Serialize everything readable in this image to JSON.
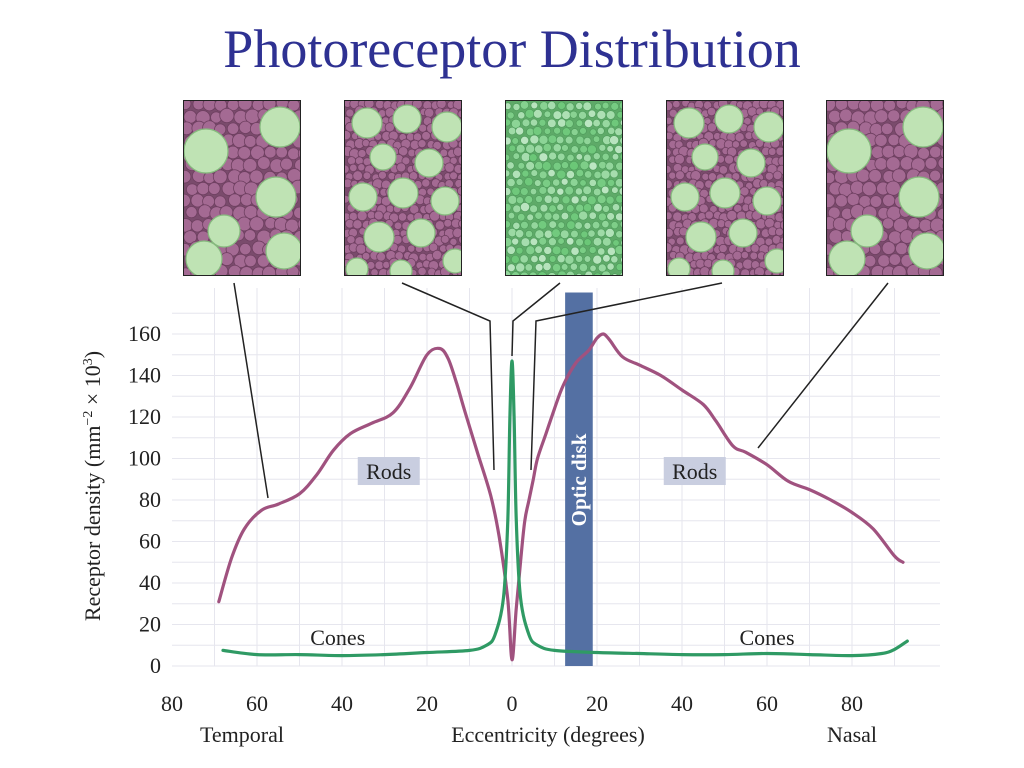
{
  "title": "Photoreceptor Distribution",
  "colors": {
    "title": "#2e3192",
    "rods": "#a0527f",
    "cones": "#2f9a64",
    "optic_disk": "#5470a3",
    "label_bg": "#c9cee0",
    "grid": "#e6e6ee",
    "rod_cell": "#a46a93",
    "cone_cell": "#bfe3b4",
    "fovea_cell": "#7fc98a"
  },
  "micrographs": [
    {
      "name": "temporal-periphery",
      "type": "mixed-sparse-cones"
    },
    {
      "name": "temporal-near-fovea",
      "type": "mixed-dense-cones"
    },
    {
      "name": "fovea",
      "type": "cones-only"
    },
    {
      "name": "nasal-near-fovea",
      "type": "mixed-dense-cones"
    },
    {
      "name": "nasal-periphery",
      "type": "mixed-sparse-cones"
    }
  ],
  "chart_data": {
    "type": "line",
    "ylabel_main": "Receptor density (mm",
    "ylabel_exp": "−2",
    "ylabel_mid": " × 10",
    "ylabel_exp2": "3",
    "ylabel_end": ")",
    "xlabel": "Eccentricity (degrees)",
    "x_left_label": "Temporal",
    "x_right_label": "Nasal",
    "xlim": [
      -80,
      95
    ],
    "ylim": [
      0,
      170
    ],
    "xticks": [
      -80,
      -60,
      -40,
      -20,
      0,
      20,
      40,
      60,
      80
    ],
    "xtick_labels": [
      "80",
      "60",
      "40",
      "20",
      "0",
      "20",
      "40",
      "60",
      "80"
    ],
    "yticks": [
      0,
      20,
      40,
      60,
      80,
      100,
      120,
      140,
      160
    ],
    "ytick_labels": [
      "0",
      "20",
      "40",
      "60",
      "80",
      "100",
      "120",
      "140",
      "160"
    ],
    "optic_disk": {
      "label": "Optic disk",
      "x_range": [
        12.5,
        19
      ],
      "y_top": 180
    },
    "series": [
      {
        "name": "Rods",
        "x": [
          -69,
          -66,
          -63,
          -59,
          -55,
          -50,
          -46,
          -42,
          -38,
          -33,
          -28,
          -24,
          -20,
          -17,
          -15,
          -13,
          -11,
          -8,
          -5,
          -3,
          -1,
          0,
          1,
          2,
          3,
          4,
          5,
          6,
          8,
          10,
          12,
          15,
          18,
          20,
          21.5,
          23,
          26,
          30,
          35,
          40,
          45,
          48,
          52,
          55,
          60,
          65,
          70,
          75,
          80,
          85,
          90,
          92
        ],
        "values": [
          31,
          52,
          66,
          75,
          78,
          83,
          92,
          104,
          112,
          117,
          122,
          134,
          150,
          153,
          148,
          136,
          122,
          102,
          82,
          62,
          32,
          3,
          28,
          50,
          70,
          80,
          90,
          100,
          112,
          124,
          135,
          146,
          152,
          158,
          160,
          157,
          149,
          145,
          140,
          133,
          126,
          118,
          106,
          103,
          97,
          89,
          85,
          80,
          74,
          66,
          53,
          50
        ]
      },
      {
        "name": "Cones",
        "x": [
          -68,
          -60,
          -50,
          -40,
          -30,
          -20,
          -10,
          -6,
          -4,
          -2,
          -1,
          -0.5,
          0,
          0.5,
          1,
          2,
          4,
          6,
          10,
          20,
          30,
          40,
          50,
          60,
          70,
          80,
          87,
          90,
          93
        ],
        "values": [
          7.5,
          5.5,
          5.5,
          5,
          5.5,
          6.5,
          7.5,
          10,
          15,
          33,
          70,
          120,
          147,
          120,
          70,
          33,
          15,
          10,
          7.5,
          6.5,
          6,
          5.5,
          5.5,
          6,
          5.5,
          5,
          6,
          8,
          12
        ]
      }
    ],
    "annotations": [
      {
        "text": "Rods",
        "x": -29,
        "y": 93
      },
      {
        "text": "Rods",
        "x": 43,
        "y": 93
      },
      {
        "text": "Cones",
        "x": -41,
        "y": 13
      },
      {
        "text": "Cones",
        "x": 60,
        "y": 13
      }
    ]
  }
}
